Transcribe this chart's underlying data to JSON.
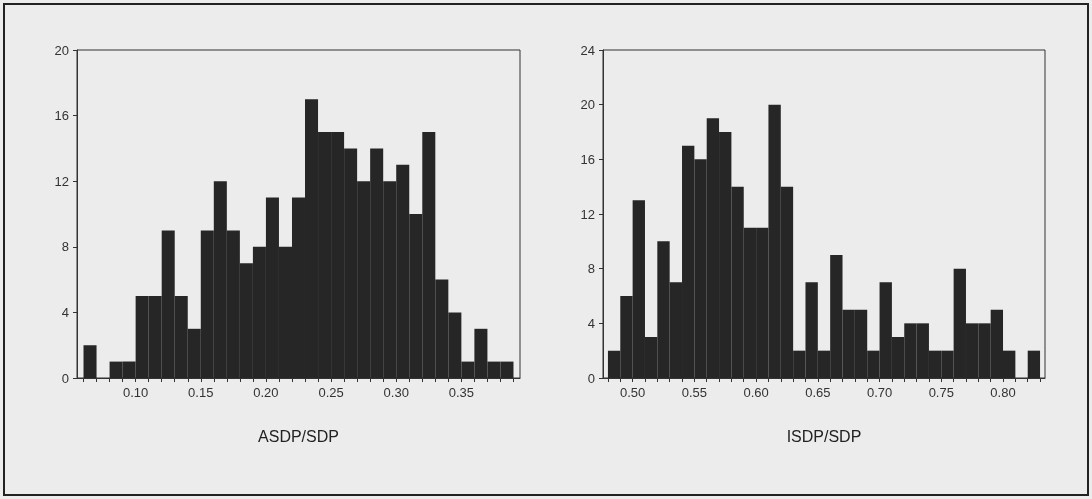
{
  "chart_data": [
    {
      "type": "histogram",
      "xlabel": "ASDP/SDP",
      "color": "#262626",
      "bins": [
        0.06,
        0.07,
        0.08,
        0.09,
        0.1,
        0.11,
        0.12,
        0.13,
        0.14,
        0.15,
        0.16,
        0.17,
        0.18,
        0.19,
        0.2,
        0.21,
        0.22,
        0.23,
        0.24,
        0.25,
        0.26,
        0.27,
        0.28,
        0.29,
        0.3,
        0.31,
        0.32,
        0.33,
        0.34,
        0.35,
        0.36,
        0.37,
        0.38,
        0.39
      ],
      "values": [
        2,
        0,
        1,
        1,
        5,
        5,
        9,
        5,
        3,
        9,
        12,
        9,
        7,
        8,
        11,
        8,
        11,
        17,
        15,
        15,
        14,
        12,
        14,
        12,
        13,
        10,
        15,
        6,
        4,
        1,
        3,
        1,
        1
      ],
      "xlim": [
        0.055,
        0.395
      ],
      "xticks": [
        {
          "value": 0.06,
          "label": null
        },
        {
          "value": 0.07,
          "label": null
        },
        {
          "value": 0.08,
          "label": null
        },
        {
          "value": 0.09,
          "label": null
        },
        {
          "value": 0.1,
          "label": "0.10"
        },
        {
          "value": 0.11,
          "label": null
        },
        {
          "value": 0.12,
          "label": null
        },
        {
          "value": 0.13,
          "label": null
        },
        {
          "value": 0.14,
          "label": null
        },
        {
          "value": 0.15,
          "label": "0.15"
        },
        {
          "value": 0.16,
          "label": null
        },
        {
          "value": 0.17,
          "label": null
        },
        {
          "value": 0.18,
          "label": null
        },
        {
          "value": 0.19,
          "label": null
        },
        {
          "value": 0.2,
          "label": "0.20"
        },
        {
          "value": 0.21,
          "label": null
        },
        {
          "value": 0.22,
          "label": null
        },
        {
          "value": 0.23,
          "label": null
        },
        {
          "value": 0.24,
          "label": null
        },
        {
          "value": 0.25,
          "label": "0.25"
        },
        {
          "value": 0.26,
          "label": null
        },
        {
          "value": 0.27,
          "label": null
        },
        {
          "value": 0.28,
          "label": null
        },
        {
          "value": 0.29,
          "label": null
        },
        {
          "value": 0.3,
          "label": "0.30"
        },
        {
          "value": 0.31,
          "label": null
        },
        {
          "value": 0.32,
          "label": null
        },
        {
          "value": 0.33,
          "label": null
        },
        {
          "value": 0.34,
          "label": null
        },
        {
          "value": 0.35,
          "label": "0.35"
        },
        {
          "value": 0.36,
          "label": null
        },
        {
          "value": 0.37,
          "label": null
        },
        {
          "value": 0.38,
          "label": null
        },
        {
          "value": 0.39,
          "label": null
        }
      ],
      "ylim": [
        0,
        20
      ],
      "yticks": [
        0,
        4,
        8,
        12,
        16,
        20
      ]
    },
    {
      "type": "histogram",
      "xlabel": "ISDP/SDP",
      "color": "#262626",
      "bins": [
        0.48,
        0.49,
        0.5,
        0.51,
        0.52,
        0.53,
        0.54,
        0.55,
        0.56,
        0.57,
        0.58,
        0.59,
        0.6,
        0.61,
        0.62,
        0.63,
        0.64,
        0.65,
        0.66,
        0.67,
        0.68,
        0.69,
        0.7,
        0.71,
        0.72,
        0.73,
        0.74,
        0.75,
        0.76,
        0.77,
        0.78,
        0.79,
        0.8,
        0.81,
        0.82,
        0.83
      ],
      "values": [
        2,
        6,
        13,
        3,
        10,
        7,
        17,
        16,
        19,
        18,
        14,
        11,
        11,
        20,
        14,
        2,
        7,
        2,
        9,
        5,
        5,
        2,
        7,
        3,
        4,
        4,
        2,
        2,
        8,
        4,
        4,
        5,
        2,
        0,
        2
      ],
      "xlim": [
        0.476,
        0.834
      ],
      "xticks": [
        {
          "value": 0.48,
          "label": null
        },
        {
          "value": 0.49,
          "label": null
        },
        {
          "value": 0.5,
          "label": "0.50"
        },
        {
          "value": 0.51,
          "label": null
        },
        {
          "value": 0.52,
          "label": null
        },
        {
          "value": 0.53,
          "label": null
        },
        {
          "value": 0.54,
          "label": null
        },
        {
          "value": 0.55,
          "label": "0.55"
        },
        {
          "value": 0.56,
          "label": null
        },
        {
          "value": 0.57,
          "label": null
        },
        {
          "value": 0.58,
          "label": null
        },
        {
          "value": 0.59,
          "label": null
        },
        {
          "value": 0.6,
          "label": "0.60"
        },
        {
          "value": 0.61,
          "label": null
        },
        {
          "value": 0.62,
          "label": null
        },
        {
          "value": 0.63,
          "label": null
        },
        {
          "value": 0.64,
          "label": null
        },
        {
          "value": 0.65,
          "label": "0.65"
        },
        {
          "value": 0.66,
          "label": null
        },
        {
          "value": 0.67,
          "label": null
        },
        {
          "value": 0.68,
          "label": null
        },
        {
          "value": 0.69,
          "label": null
        },
        {
          "value": 0.7,
          "label": "0.70"
        },
        {
          "value": 0.71,
          "label": null
        },
        {
          "value": 0.72,
          "label": null
        },
        {
          "value": 0.73,
          "label": null
        },
        {
          "value": 0.74,
          "label": null
        },
        {
          "value": 0.75,
          "label": "0.75"
        },
        {
          "value": 0.76,
          "label": null
        },
        {
          "value": 0.77,
          "label": null
        },
        {
          "value": 0.78,
          "label": null
        },
        {
          "value": 0.79,
          "label": null
        },
        {
          "value": 0.8,
          "label": "0.80"
        },
        {
          "value": 0.81,
          "label": null
        },
        {
          "value": 0.82,
          "label": null
        },
        {
          "value": 0.83,
          "label": null
        }
      ],
      "ylim": [
        0,
        24
      ],
      "yticks": [
        0,
        4,
        8,
        12,
        16,
        20,
        24
      ]
    }
  ]
}
